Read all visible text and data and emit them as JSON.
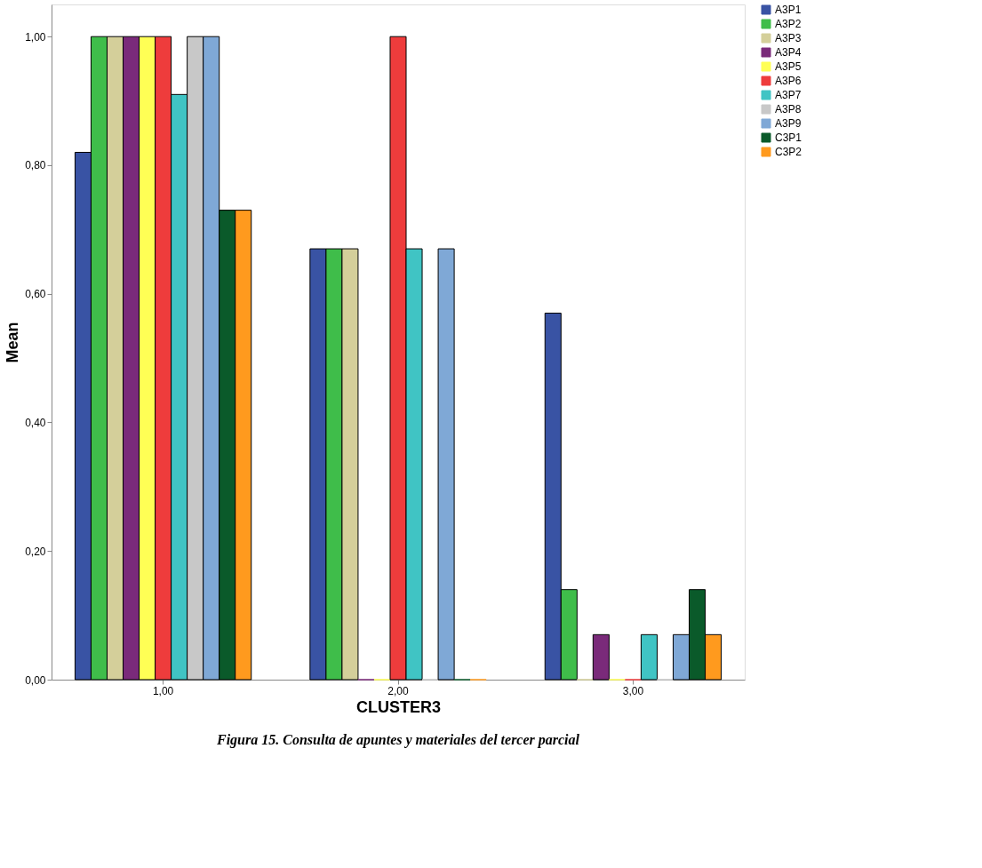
{
  "chart_data": {
    "type": "bar",
    "xlabel": "CLUSTER3",
    "ylabel": "Mean",
    "categories": [
      "1,00",
      "2,00",
      "3,00"
    ],
    "series": [
      {
        "name": "A3P1",
        "color": "#3953a4",
        "values": [
          0.82,
          0.67,
          0.57
        ]
      },
      {
        "name": "A3P2",
        "color": "#3fbd4a",
        "values": [
          1.0,
          0.67,
          0.14
        ]
      },
      {
        "name": "A3P3",
        "color": "#d4cf9a",
        "values": [
          1.0,
          0.67,
          0.0
        ]
      },
      {
        "name": "A3P4",
        "color": "#7a2a7a",
        "values": [
          1.0,
          0.0,
          0.07
        ]
      },
      {
        "name": "A3P5",
        "color": "#ffff55",
        "values": [
          1.0,
          0.0,
          0.0
        ]
      },
      {
        "name": "A3P6",
        "color": "#ee3c3c",
        "values": [
          1.0,
          1.0,
          0.0
        ]
      },
      {
        "name": "A3P7",
        "color": "#40c4c4",
        "values": [
          0.91,
          0.67,
          0.07
        ]
      },
      {
        "name": "A3P8",
        "color": "#c8c8c8",
        "values": [
          1.0,
          0.0,
          0.0
        ]
      },
      {
        "name": "A3P9",
        "color": "#7fa8d6",
        "values": [
          1.0,
          0.67,
          0.07
        ]
      },
      {
        "name": "C3P1",
        "color": "#0a5a2a",
        "values": [
          0.73,
          0.0,
          0.14
        ]
      },
      {
        "name": "C3P2",
        "color": "#ff9a1e",
        "values": [
          0.73,
          0.0,
          0.07
        ]
      }
    ],
    "ylim": [
      0,
      1.05
    ],
    "yticks": [
      {
        "value": 0,
        "label": "0,00"
      },
      {
        "value": 0.2,
        "label": "0,20"
      },
      {
        "value": 0.4,
        "label": "0,40"
      },
      {
        "value": 0.6,
        "label": "0,60"
      },
      {
        "value": 0.8,
        "label": "0,80"
      },
      {
        "value": 1.0,
        "label": "1,00"
      }
    ],
    "grid": false,
    "legend": "right",
    "annotations": [
      "Figura 15. Consulta de apuntes y materiales del tercer parcial"
    ]
  }
}
